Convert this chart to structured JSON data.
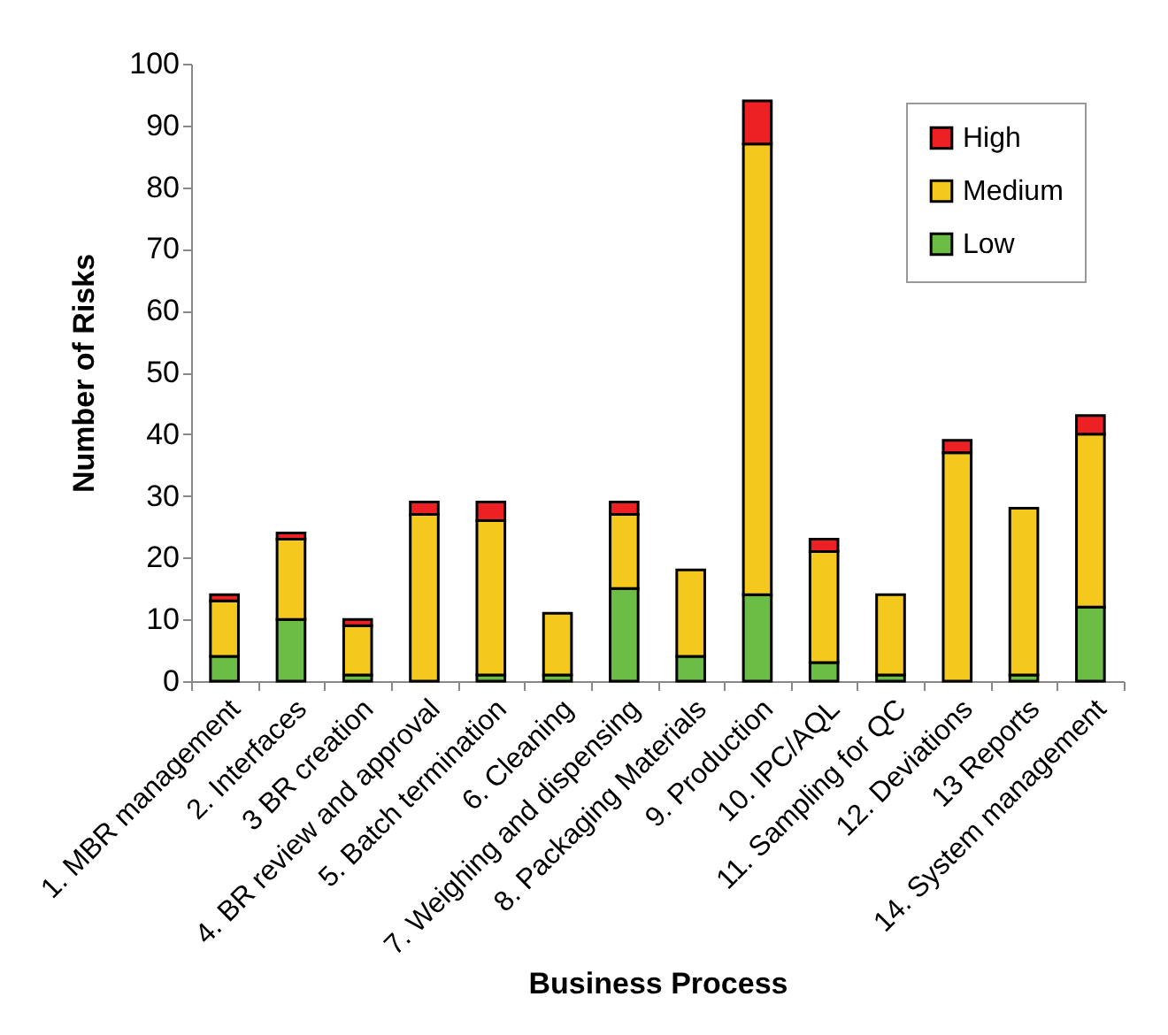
{
  "chart_data": {
    "type": "bar",
    "stacked": true,
    "xlabel": "Business Process",
    "ylabel": "Number of Risks",
    "categories": [
      "1. MBR management",
      "2. Interfaces",
      "3 BR creation",
      "4. BR review and approval",
      "5. Batch termination",
      "6. Cleaning",
      "7. Weighing and dispensing",
      "8. Packaging Materials",
      "9. Production",
      "10. IPC/AQL",
      "11. Sampling for QC",
      "12. Deviations",
      "13 Reports",
      "14. System management"
    ],
    "series": [
      {
        "name": "Low",
        "color": "#6cbd45",
        "values": [
          4,
          10,
          1,
          0,
          1,
          1,
          15,
          4,
          14,
          3,
          1,
          0,
          1,
          12
        ]
      },
      {
        "name": "Medium",
        "color": "#f5c81e",
        "values": [
          9,
          13,
          8,
          27,
          25,
          10,
          12,
          14,
          73,
          18,
          13,
          37,
          27,
          28
        ]
      },
      {
        "name": "High",
        "color": "#ed2024",
        "values": [
          1,
          1,
          1,
          2,
          3,
          0,
          2,
          0,
          7,
          2,
          0,
          2,
          0,
          3
        ]
      }
    ],
    "ylim": [
      0,
      100
    ],
    "yticks": [
      0,
      10,
      20,
      30,
      40,
      50,
      60,
      70,
      80,
      90,
      100
    ],
    "grid": false,
    "legend": "top right"
  }
}
